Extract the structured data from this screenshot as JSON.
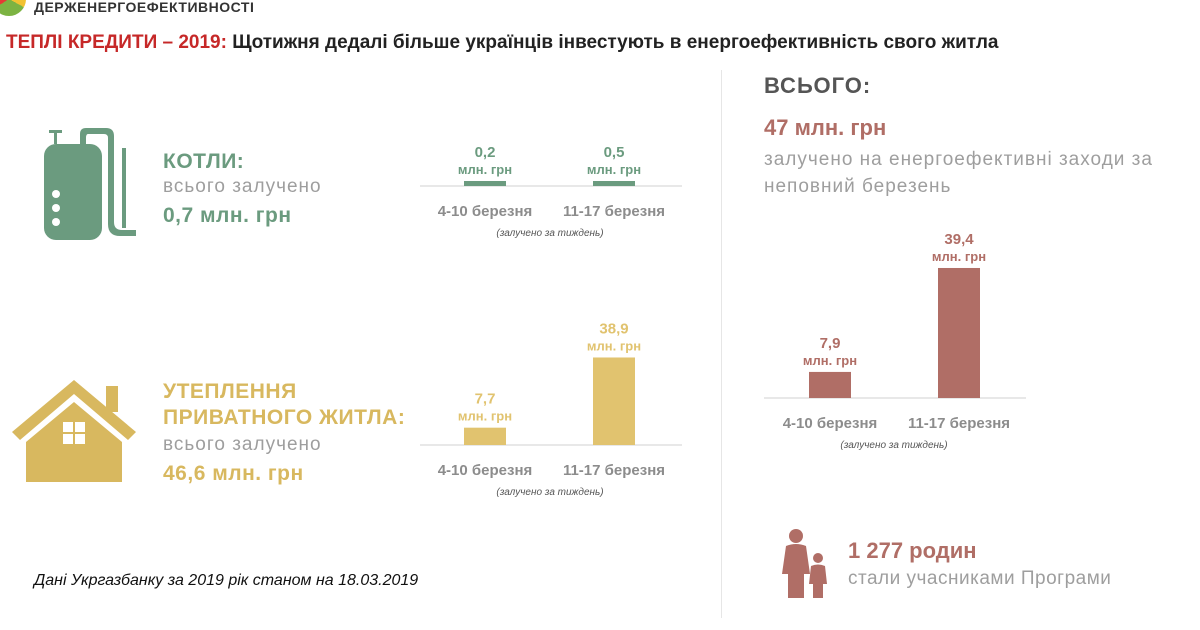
{
  "header": {
    "brand_text": "ДЕРЖЕНЕРГОЕФЕКТИВНОСТІ",
    "headline_red": "ТЕПЛІ КРЕДИТИ – 2019:",
    "headline_black": " Щотижня дедалі більше українців інвестують в енергоефективність свого житла"
  },
  "boilers": {
    "title": "КОТЛИ:",
    "subtitle": "всього залучено",
    "total": "0,7 млн. грн"
  },
  "insulation": {
    "title_line1": "УТЕПЛЕННЯ",
    "title_line2": "ПРИВАТНОГО ЖИТЛА:",
    "subtitle": "всього залучено",
    "total": "46,6 млн. грн"
  },
  "summary": {
    "title": "ВСЬОГО:",
    "total": "47 млн. грн",
    "desc": "залучено на енергоефективні заходи за неповний березень"
  },
  "families": {
    "count": "1 277 родин",
    "text": "стали учасниками Програми"
  },
  "footnote": "Дані Укргазбанку за 2019 рік станом на  18.03.2019",
  "colors": {
    "green": "#6b9b7f",
    "gold": "#e1c36f",
    "rose": "#b06e66",
    "accent_red": "#c62828"
  },
  "chart_data": [
    {
      "type": "bar",
      "name": "boilers",
      "categories": [
        "4-10 березня",
        "11-17 березня"
      ],
      "values": [
        0.2,
        0.5
      ],
      "value_labels": [
        "0,2",
        "0,5"
      ],
      "unit_label": "млн. грн",
      "note": "(залучено за тиждень)",
      "ylim": [
        0,
        40
      ]
    },
    {
      "type": "bar",
      "name": "insulation",
      "categories": [
        "4-10 березня",
        "11-17 березня"
      ],
      "values": [
        7.7,
        38.9
      ],
      "value_labels": [
        "7,7",
        "38,9"
      ],
      "unit_label": "млн. грн",
      "note": "(залучено за тиждень)",
      "ylim": [
        0,
        40
      ]
    },
    {
      "type": "bar",
      "name": "total",
      "categories": [
        "4-10 березня",
        "11-17 березня"
      ],
      "values": [
        7.9,
        39.4
      ],
      "value_labels": [
        "7,9",
        "39,4"
      ],
      "unit_label": "млн. грн",
      "note": "(залучено за тиждень)",
      "ylim": [
        0,
        40
      ]
    }
  ]
}
